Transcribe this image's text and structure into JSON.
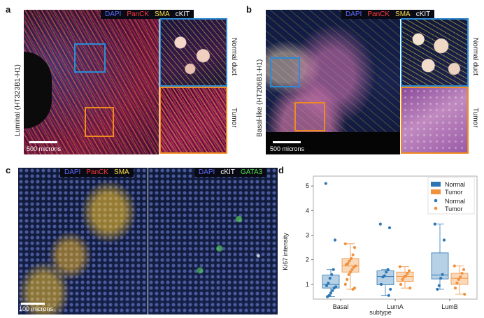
{
  "panels": {
    "a": {
      "label": "a",
      "side_label": "Luminal (HT323B1-H1)",
      "scale": "500 microns",
      "channels": [
        {
          "name": "DAPI",
          "color": "#5b6cff"
        },
        {
          "name": "PanCK",
          "color": "#ff3b3b"
        },
        {
          "name": "SMA",
          "color": "#ffe14a"
        },
        {
          "name": "cKIT",
          "color": "#ffffff"
        }
      ],
      "inset_top": "Normal duct",
      "inset_bottom": "Tumor",
      "box_colors": {
        "normal": "#2b8bd6",
        "tumor": "#f08a1c"
      }
    },
    "b": {
      "label": "b",
      "side_label": "Basal-like (HT206B1-H1)",
      "scale": "500 microns",
      "channels": [
        {
          "name": "DAPI",
          "color": "#5b6cff"
        },
        {
          "name": "PanCK",
          "color": "#ff3b3b"
        },
        {
          "name": "SMA",
          "color": "#ffe14a"
        },
        {
          "name": "cKIT",
          "color": "#ffffff"
        }
      ],
      "inset_top": "Normal duct",
      "inset_bottom": "Tumor"
    },
    "c": {
      "label": "c",
      "scale": "100 microns",
      "left_channels": [
        {
          "name": "DAPI",
          "color": "#5b6cff"
        },
        {
          "name": "PanCK",
          "color": "#ff3b3b"
        },
        {
          "name": "SMA",
          "color": "#ffe14a"
        }
      ],
      "right_channels": [
        {
          "name": "DAPI",
          "color": "#5b6cff"
        },
        {
          "name": "cKIT",
          "color": "#ffffff"
        },
        {
          "name": "GATA3",
          "color": "#4fe04f"
        }
      ]
    },
    "d": {
      "label": "d"
    }
  },
  "chart_data": {
    "type": "box",
    "categories": [
      "Basal",
      "LumA",
      "LumB"
    ],
    "xlabel": "subtype",
    "ylabel": "Ki67 intensity",
    "ylim": [
      0.4,
      5.4
    ],
    "yticks": [
      1,
      2,
      3,
      4,
      5
    ],
    "colors": {
      "Normal": "#2f77b4",
      "Tumor": "#f0913c"
    },
    "legend_position": "top-right",
    "legend": {
      "box_entries": [
        "Normal",
        "Tumor"
      ],
      "point_entries": [
        "Normal",
        "Tumor"
      ]
    },
    "boxes": [
      {
        "category": "Basal",
        "series": "Normal",
        "q1": 0.85,
        "median": 1.0,
        "q3": 1.38,
        "whisk_lo": 0.5,
        "whisk_hi": 1.6
      },
      {
        "category": "Basal",
        "series": "Tumor",
        "q1": 1.5,
        "median": 1.75,
        "q3": 2.05,
        "whisk_lo": 0.8,
        "whisk_hi": 2.65
      },
      {
        "category": "LumA",
        "series": "Normal",
        "q1": 0.98,
        "median": 1.32,
        "q3": 1.55,
        "whisk_lo": 0.55,
        "whisk_hi": 1.6
      },
      {
        "category": "LumA",
        "series": "Tumor",
        "q1": 1.12,
        "median": 1.32,
        "q3": 1.5,
        "whisk_lo": 0.85,
        "whisk_hi": 1.72
      },
      {
        "category": "LumB",
        "series": "Normal",
        "q1": 1.22,
        "median": 1.38,
        "q3": 2.28,
        "whisk_lo": 0.8,
        "whisk_hi": 3.45
      },
      {
        "category": "LumB",
        "series": "Tumor",
        "q1": 1.0,
        "median": 1.25,
        "q3": 1.45,
        "whisk_lo": 0.6,
        "whisk_hi": 1.75
      }
    ],
    "points": [
      {
        "category": "Basal",
        "series": "Normal",
        "values": [
          5.1,
          2.8,
          1.6,
          1.4,
          1.25,
          1.05,
          0.95,
          0.9,
          0.85,
          0.75,
          0.65,
          0.55,
          0.5
        ]
      },
      {
        "category": "Basal",
        "series": "Tumor",
        "values": [
          2.65,
          2.5,
          2.2,
          2.05,
          1.95,
          1.85,
          1.8,
          1.75,
          1.7,
          1.6,
          1.5,
          1.4,
          1.2,
          1.0,
          0.85,
          0.8
        ]
      },
      {
        "category": "LumA",
        "series": "Normal",
        "values": [
          3.45,
          3.3,
          1.6,
          1.5,
          1.35,
          1.3,
          1.0,
          0.8,
          0.55
        ]
      },
      {
        "category": "LumA",
        "series": "Tumor",
        "values": [
          1.72,
          1.55,
          1.45,
          1.35,
          1.3,
          1.2,
          1.0,
          0.85
        ]
      },
      {
        "category": "LumB",
        "series": "Normal",
        "values": [
          3.45,
          2.8,
          1.4,
          1.25,
          0.95,
          0.8
        ]
      },
      {
        "category": "LumB",
        "series": "Tumor",
        "values": [
          1.75,
          1.6,
          1.45,
          1.3,
          1.2,
          1.05,
          0.85,
          0.6
        ]
      }
    ]
  }
}
